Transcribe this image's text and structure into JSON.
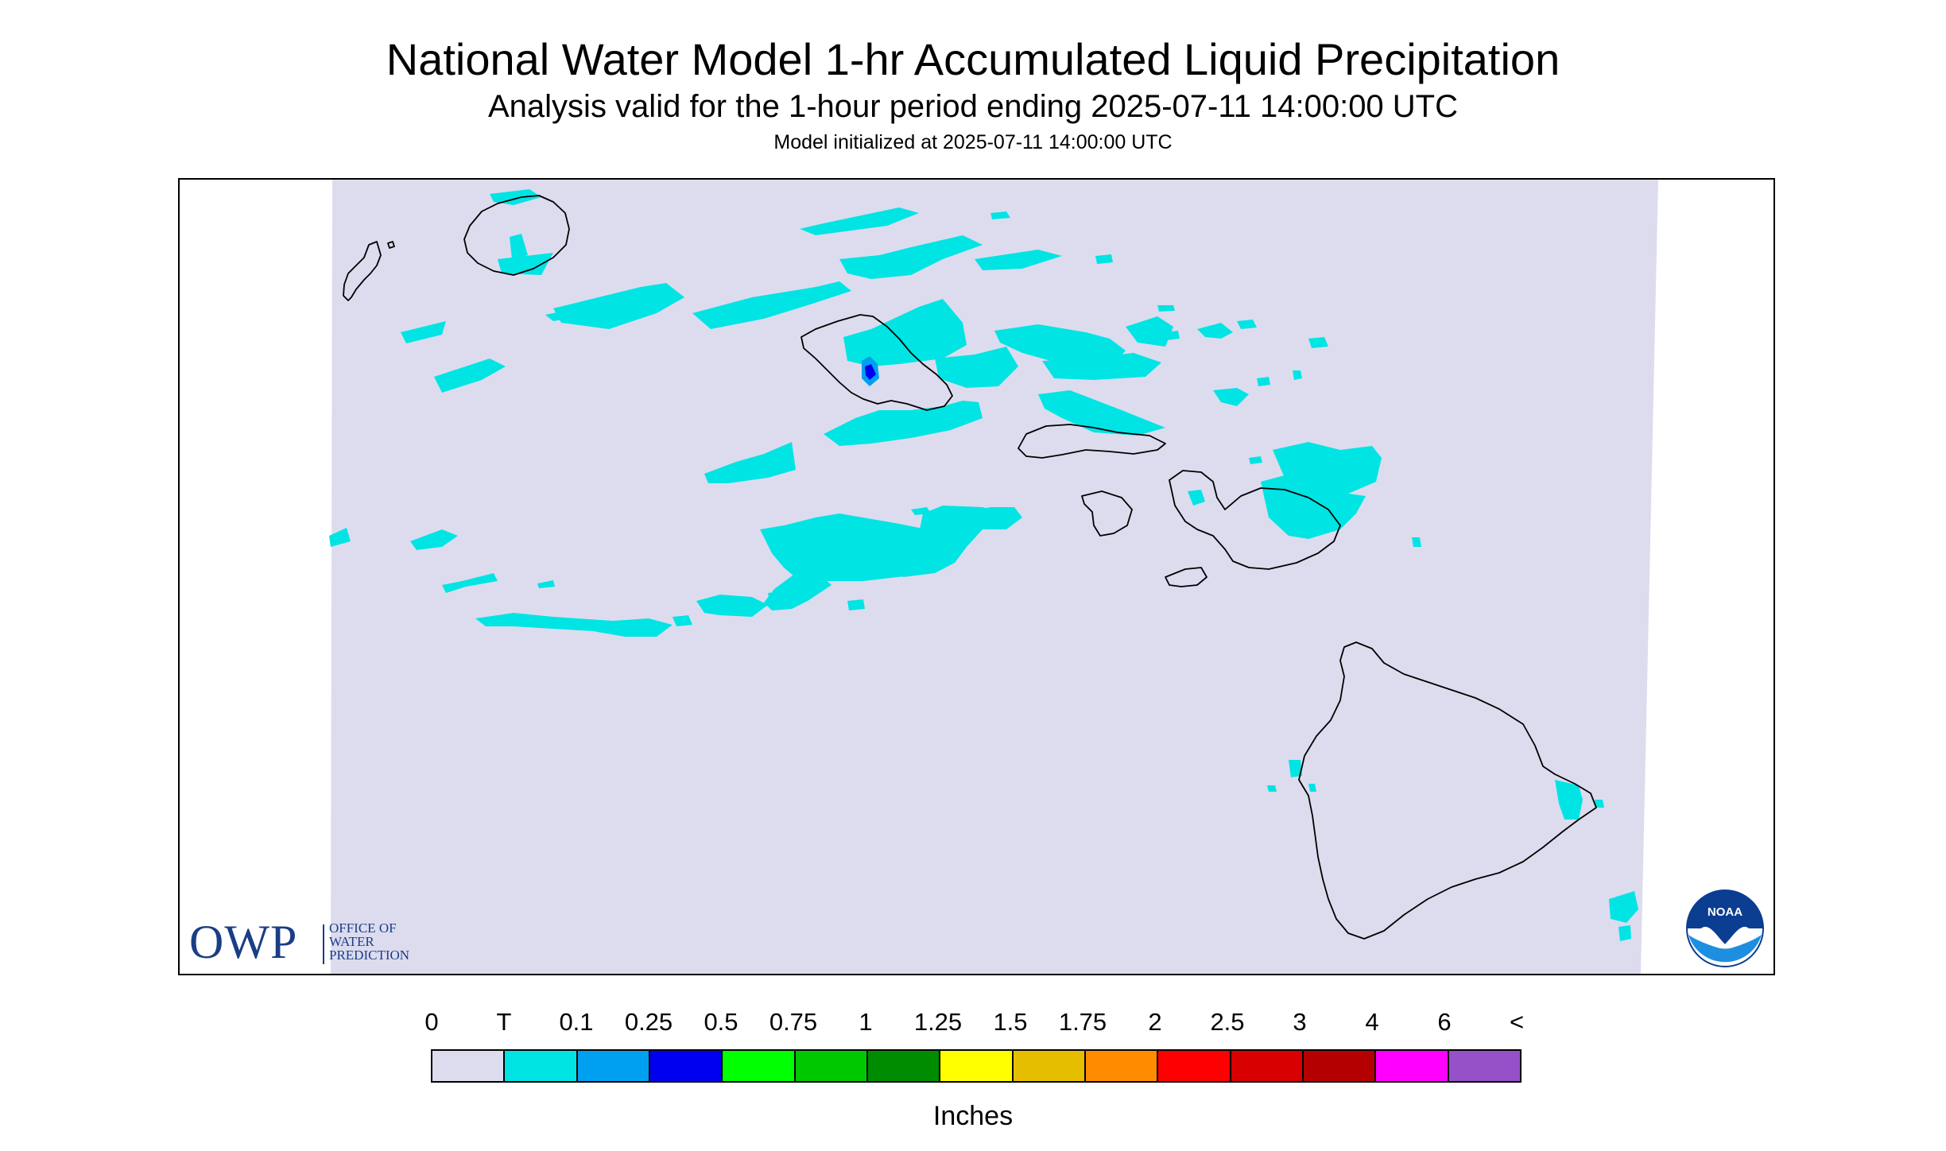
{
  "header": {
    "title": "National Water Model 1-hr Accumulated Liquid Precipitation",
    "subtitle": "Analysis valid for the 1-hour period ending 2025-07-11 14:00:00 UTC",
    "init": "Model initialized at 2025-07-11 14:00:00 UTC"
  },
  "logos": {
    "owp_abbrev": "OWP",
    "owp_line1": "OFFICE OF",
    "owp_line2": "WATER",
    "owp_line3": "PREDICTION",
    "noaa_text": "NOAA"
  },
  "legend": {
    "labels": [
      "0",
      "T",
      "0.1",
      "0.25",
      "0.5",
      "0.75",
      "1",
      "1.25",
      "1.5",
      "1.75",
      "2",
      "2.5",
      "3",
      "4",
      "6",
      "<"
    ],
    "colors": [
      "#dcdcee",
      "#00e4e4",
      "#00a0f0",
      "#0000f0",
      "#00ff00",
      "#00c800",
      "#008c00",
      "#ffff00",
      "#e6be00",
      "#ff8c00",
      "#ff0000",
      "#d80000",
      "#b40000",
      "#ff00ff",
      "#9650c8"
    ],
    "units": "Inches"
  },
  "map": {
    "background_color": "#dcdcee",
    "trace_color": "#00e4e4",
    "light_color": "#00a0f0",
    "heavy_color": "#0000f0"
  }
}
